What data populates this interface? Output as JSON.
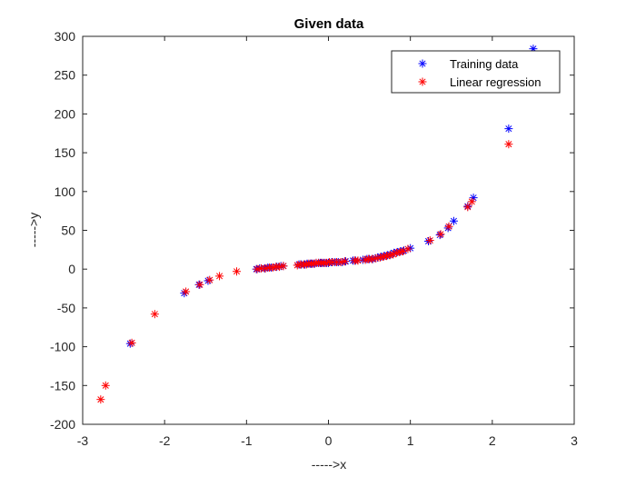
{
  "chart_data": {
    "type": "scatter",
    "title": "Given data",
    "xlabel": "----->x",
    "ylabel": "----->y",
    "xlim": [
      -3,
      3
    ],
    "ylim": [
      -200,
      300
    ],
    "xticks": [
      -3,
      -2,
      -1,
      0,
      1,
      2,
      3
    ],
    "yticks": [
      -200,
      -150,
      -100,
      -50,
      0,
      50,
      100,
      150,
      200,
      250,
      300
    ],
    "xtick_labels": [
      "-3",
      "-2",
      "-1",
      "0",
      "1",
      "2",
      "3"
    ],
    "ytick_labels": [
      "-200",
      "-150",
      "-100",
      "-50",
      "0",
      "50",
      "100",
      "150",
      "200",
      "250",
      "300"
    ],
    "grid": false,
    "legend_position": "top-right",
    "marker": "asterisk",
    "series": [
      {
        "name": "Training data",
        "color": "#0000ff",
        "x": [
          -2.42,
          -1.76,
          -1.58,
          -1.47,
          -0.88,
          -0.84,
          -0.78,
          -0.74,
          -0.7,
          -0.63,
          -0.58,
          -0.55,
          -0.36,
          -0.33,
          -0.29,
          -0.26,
          -0.22,
          -0.2,
          -0.17,
          -0.15,
          -0.12,
          -0.1,
          -0.08,
          -0.05,
          -0.02,
          0.0,
          0.04,
          0.08,
          0.12,
          0.17,
          0.21,
          0.3,
          0.33,
          0.42,
          0.47,
          0.5,
          0.54,
          0.6,
          0.64,
          0.68,
          0.72,
          0.76,
          0.8,
          0.84,
          0.88,
          0.92,
          1.0,
          1.22,
          1.36,
          1.46,
          1.53,
          1.7,
          1.77,
          2.2,
          2.5
        ],
        "y": [
          -96,
          -31,
          -20,
          -15,
          0,
          1,
          1,
          2,
          2,
          3,
          4,
          4,
          6,
          6,
          6,
          7,
          7,
          7,
          7,
          8,
          8,
          8,
          8,
          8,
          8,
          8,
          9,
          9,
          9,
          9,
          10,
          11,
          11,
          12,
          13,
          13,
          13,
          15,
          16,
          17,
          18,
          19,
          21,
          22,
          23,
          24,
          27,
          36,
          44,
          53,
          62,
          81,
          92,
          181,
          284
        ]
      },
      {
        "name": "Linear regression",
        "color": "#ff0000",
        "x": [
          -2.78,
          -2.72,
          -2.4,
          -2.12,
          -1.74,
          -1.57,
          -1.45,
          -1.33,
          -1.12,
          -0.87,
          -0.82,
          -0.77,
          -0.72,
          -0.68,
          -0.64,
          -0.6,
          -0.55,
          -0.38,
          -0.34,
          -0.3,
          -0.27,
          -0.24,
          -0.21,
          -0.18,
          -0.15,
          -0.12,
          -0.09,
          -0.06,
          -0.03,
          0.01,
          0.05,
          0.1,
          0.15,
          0.2,
          0.32,
          0.36,
          0.45,
          0.49,
          0.53,
          0.58,
          0.63,
          0.67,
          0.71,
          0.75,
          0.79,
          0.83,
          0.87,
          0.91,
          0.97,
          1.24,
          1.37,
          1.47,
          1.7,
          1.75,
          2.2
        ],
        "y": [
          -168,
          -150,
          -95,
          -58,
          -29,
          -20,
          -14,
          -9,
          -3,
          0,
          1,
          1,
          2,
          2,
          3,
          3,
          4,
          5,
          6,
          6,
          6,
          7,
          7,
          7,
          8,
          8,
          8,
          8,
          8,
          9,
          9,
          9,
          9,
          10,
          11,
          11,
          12,
          13,
          13,
          14,
          15,
          16,
          17,
          18,
          19,
          21,
          22,
          23,
          26,
          37,
          45,
          55,
          80,
          87,
          161
        ]
      }
    ]
  }
}
